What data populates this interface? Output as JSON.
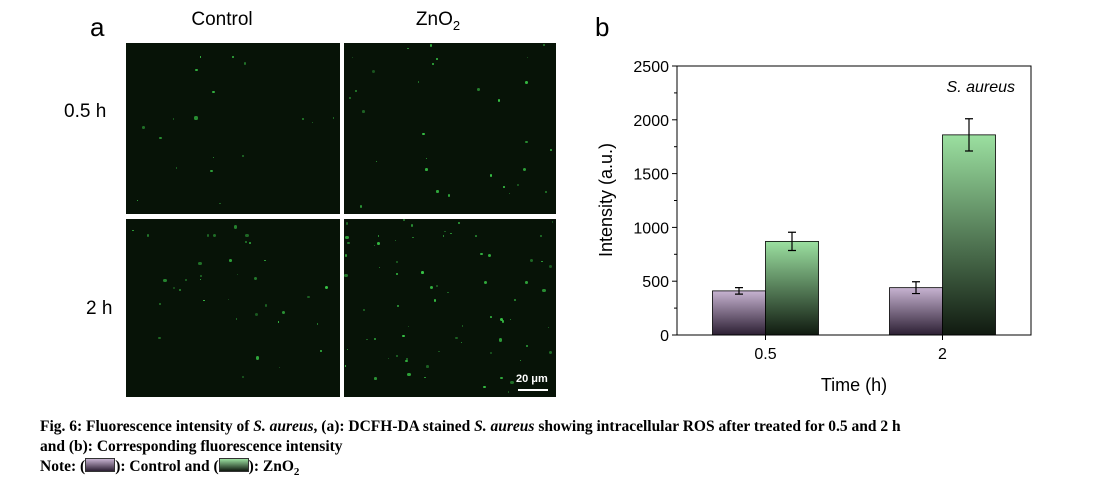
{
  "panel_a": {
    "letter": "a",
    "columns": [
      "Control",
      "ZnO"
    ],
    "column_subscript": "2",
    "rows": [
      "0.5 h",
      "2 h"
    ],
    "scale_bar": "20 μm",
    "accent": "#3bd04a"
  },
  "panel_b": {
    "letter": "b"
  },
  "chart_data": {
    "type": "bar",
    "categories": [
      "0.5",
      "2"
    ],
    "series": [
      {
        "values": [
          410,
          440
        ],
        "errors": [
          30,
          55
        ],
        "color_top": "#c7b3d1",
        "color_bottom": "#2c1f33"
      },
      {
        "values": [
          870,
          1860
        ],
        "errors": [
          85,
          150
        ],
        "color_top": "#9be0a0",
        "color_bottom": "#101a10"
      }
    ],
    "xlabel": "Time (h)",
    "ylabel": "Intensity (a.u.)",
    "ylim": [
      0,
      2500
    ],
    "yticks": [
      0,
      500,
      1000,
      1500,
      2000,
      2500
    ],
    "annotation": "S. aureus",
    "grid": false
  },
  "caption": {
    "line1_a": "Fig. 6: Fluorescence intensity of ",
    "line1_b": "S. aureus",
    "line1_c": ", (a): DCFH-DA stained ",
    "line1_d": "S. aureus",
    "line1_e": " showing intracellular ROS after treated for 0.5 and 2 h",
    "line2": "and (b): Corresponding fluorescence intensity",
    "note_a": "Note: (",
    "note_b": "): Control and (",
    "note_c": "): ZnO",
    "note_sub": "2"
  }
}
